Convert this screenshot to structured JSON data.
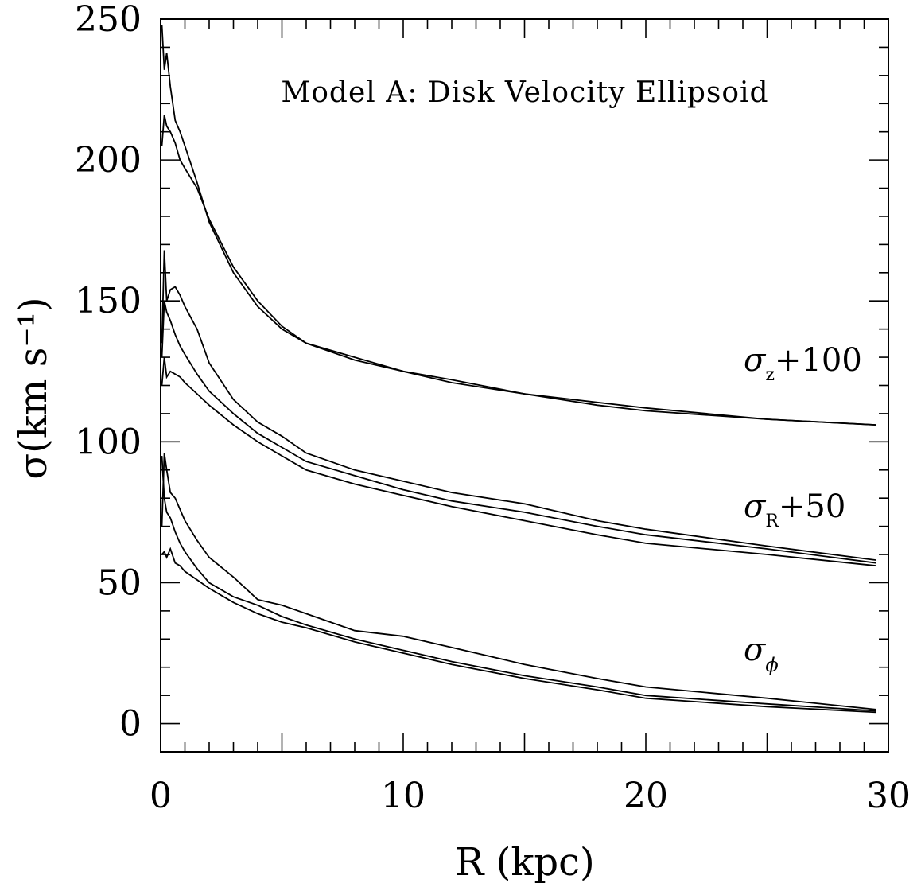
{
  "chart_data": {
    "type": "line",
    "title": "Model A: Disk Velocity Ellipsoid",
    "xlabel": "R (kpc)",
    "ylabel": "σ(km s⁻¹)",
    "xlim": [
      0,
      30
    ],
    "ylim": [
      -10,
      250
    ],
    "x_ticks": [
      0,
      10,
      20,
      30
    ],
    "y_ticks": [
      0,
      50,
      100,
      150,
      200,
      250
    ],
    "grid": false,
    "annotations": [
      {
        "base": "σ",
        "sub": "z",
        "suffix": "+100"
      },
      {
        "base": "σ",
        "sub": "R",
        "suffix": "+50"
      },
      {
        "base": "σ",
        "sub": "ϕ",
        "suffix": ""
      }
    ],
    "series": [
      {
        "group": "sigma_z+100",
        "x": [
          0.05,
          0.15,
          0.25,
          0.4,
          0.6,
          0.8,
          1.0,
          1.5,
          2,
          3,
          4,
          5,
          6,
          8,
          10,
          12,
          15,
          18,
          20,
          25,
          29.5
        ],
        "y": [
          248,
          232,
          238,
          226,
          214,
          210,
          205,
          192,
          178,
          160,
          148,
          140,
          135,
          130,
          125,
          122,
          117,
          114,
          112,
          108,
          106
        ]
      },
      {
        "group": "sigma_z+100",
        "x": [
          0.05,
          0.15,
          0.25,
          0.4,
          0.6,
          0.8,
          1.0,
          1.5,
          2,
          3,
          4,
          5,
          6,
          8,
          10,
          12,
          15,
          18,
          20,
          25,
          29.5
        ],
        "y": [
          205,
          216,
          212,
          210,
          206,
          200,
          197,
          190,
          179,
          162,
          150,
          141,
          135,
          129,
          125,
          121,
          117,
          113,
          111,
          108,
          106
        ]
      },
      {
        "group": "sigma_R+50",
        "x": [
          0.05,
          0.15,
          0.25,
          0.4,
          0.6,
          0.8,
          1.0,
          1.5,
          2,
          3,
          4,
          5,
          6,
          8,
          10,
          12,
          15,
          18,
          20,
          25,
          29.5
        ],
        "y": [
          135,
          168,
          150,
          154,
          155,
          152,
          148,
          140,
          128,
          115,
          107,
          102,
          96,
          90,
          86,
          82,
          78,
          72,
          69,
          63,
          58
        ]
      },
      {
        "group": "sigma_R+50",
        "x": [
          0.05,
          0.15,
          0.25,
          0.4,
          0.6,
          0.8,
          1.0,
          1.5,
          2,
          3,
          4,
          5,
          6,
          8,
          10,
          12,
          15,
          18,
          20,
          25,
          29.5
        ],
        "y": [
          130,
          150,
          146,
          143,
          138,
          134,
          131,
          124,
          118,
          110,
          103,
          98,
          93,
          88,
          83,
          79,
          75,
          70,
          67,
          62,
          57
        ]
      },
      {
        "group": "sigma_R+50",
        "x": [
          0.05,
          0.15,
          0.25,
          0.4,
          0.6,
          0.8,
          1.0,
          1.5,
          2,
          3,
          4,
          5,
          6,
          8,
          10,
          12,
          15,
          18,
          20,
          25,
          29.5
        ],
        "y": [
          120,
          130,
          123,
          125,
          124,
          123,
          121,
          117,
          113,
          106,
          100,
          95,
          90,
          85,
          81,
          77,
          72,
          67,
          64,
          60,
          56
        ]
      },
      {
        "group": "sigma_phi",
        "x": [
          0.05,
          0.15,
          0.25,
          0.4,
          0.6,
          0.8,
          1.0,
          1.5,
          2,
          3,
          4,
          5,
          6,
          8,
          10,
          12,
          15,
          18,
          20,
          25,
          29.5
        ],
        "y": [
          70,
          96,
          90,
          82,
          80,
          76,
          72,
          65,
          59,
          52,
          44,
          42,
          39,
          33,
          31,
          27,
          21,
          16,
          13,
          9,
          5
        ]
      },
      {
        "group": "sigma_phi",
        "x": [
          0.05,
          0.15,
          0.25,
          0.4,
          0.6,
          0.8,
          1.0,
          1.5,
          2,
          3,
          4,
          5,
          6,
          8,
          10,
          12,
          15,
          18,
          20,
          25,
          29.5
        ],
        "y": [
          95,
          80,
          75,
          73,
          68,
          64,
          61,
          55,
          50,
          45,
          42,
          38,
          35,
          30,
          26,
          22,
          17,
          13,
          10,
          7,
          4.5
        ]
      },
      {
        "group": "sigma_phi",
        "x": [
          0.05,
          0.15,
          0.25,
          0.4,
          0.6,
          0.8,
          1.0,
          1.5,
          2,
          3,
          4,
          5,
          6,
          8,
          10,
          12,
          15,
          18,
          20,
          25,
          29.5
        ],
        "y": [
          60,
          61,
          59,
          62,
          57,
          56,
          54,
          51,
          48,
          43,
          39,
          36,
          34,
          29,
          25,
          21,
          16,
          12,
          9,
          6,
          4
        ]
      }
    ]
  }
}
